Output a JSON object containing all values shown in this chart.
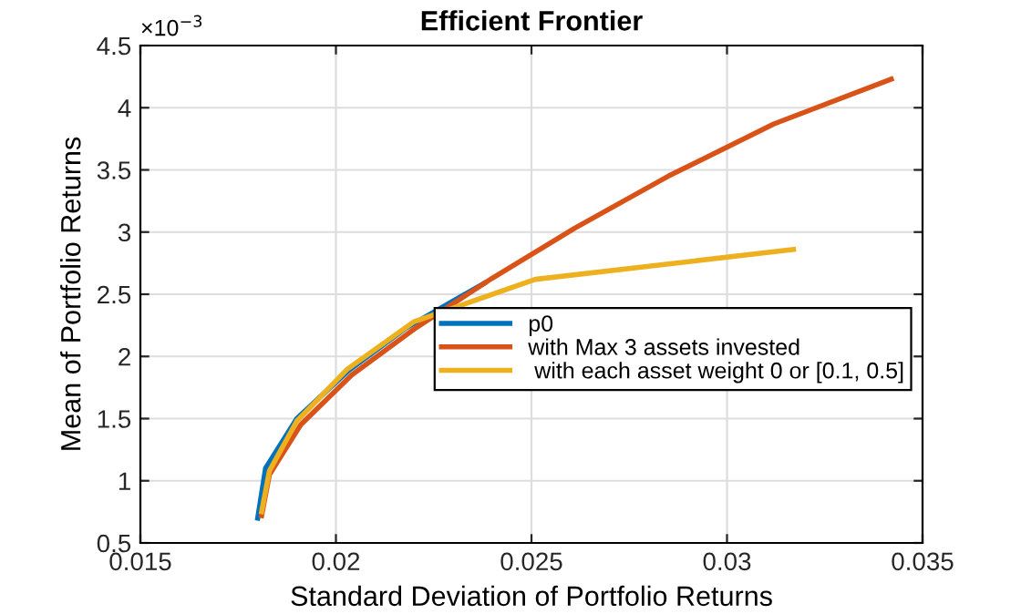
{
  "chart_data": {
    "type": "line",
    "title": "Efficient Frontier",
    "xlabel": "Standard Deviation of Portfolio Returns",
    "ylabel": "Mean of Portfolio Returns",
    "annotations": [
      "×10$^{−3}$"
    ],
    "series": [
      {
        "name": "p0",
        "color": "#0072bd",
        "x": [
          0.018,
          0.0182,
          0.019,
          0.0203,
          0.0218,
          0.0238
        ],
        "values": [
          0.7,
          1.1,
          1.5,
          1.88,
          2.23,
          2.59
        ]
      },
      {
        "name": "with Max 3 assets invested",
        "color": "#d95319",
        "x": [
          0.0181,
          0.0183,
          0.0191,
          0.0204,
          0.022,
          0.024,
          0.0261,
          0.0285,
          0.0312,
          0.0342
        ],
        "values": [
          0.72,
          1.05,
          1.45,
          1.85,
          2.22,
          2.63,
          3.03,
          3.45,
          3.87,
          4.23
        ]
      },
      {
        "name": " with each asset weight 0 or [0.1, 0.5]",
        "color": "#edb120",
        "x": [
          0.0181,
          0.0183,
          0.019,
          0.0203,
          0.022,
          0.0251,
          0.0317
        ],
        "values": [
          0.75,
          1.08,
          1.48,
          1.9,
          2.28,
          2.62,
          2.86
        ]
      }
    ],
    "xlim": [
      0.015,
      0.035
    ],
    "xticks": [
      0.015,
      0.02,
      0.025,
      0.03,
      0.035
    ],
    "ylim": [
      0.5,
      4.5
    ],
    "yticks": [
      0.5,
      1,
      1.5,
      2,
      2.5,
      3,
      3.5,
      4,
      4.5
    ],
    "grid": true,
    "legend": "right",
    "line_style": "solid",
    "marker": "none"
  }
}
